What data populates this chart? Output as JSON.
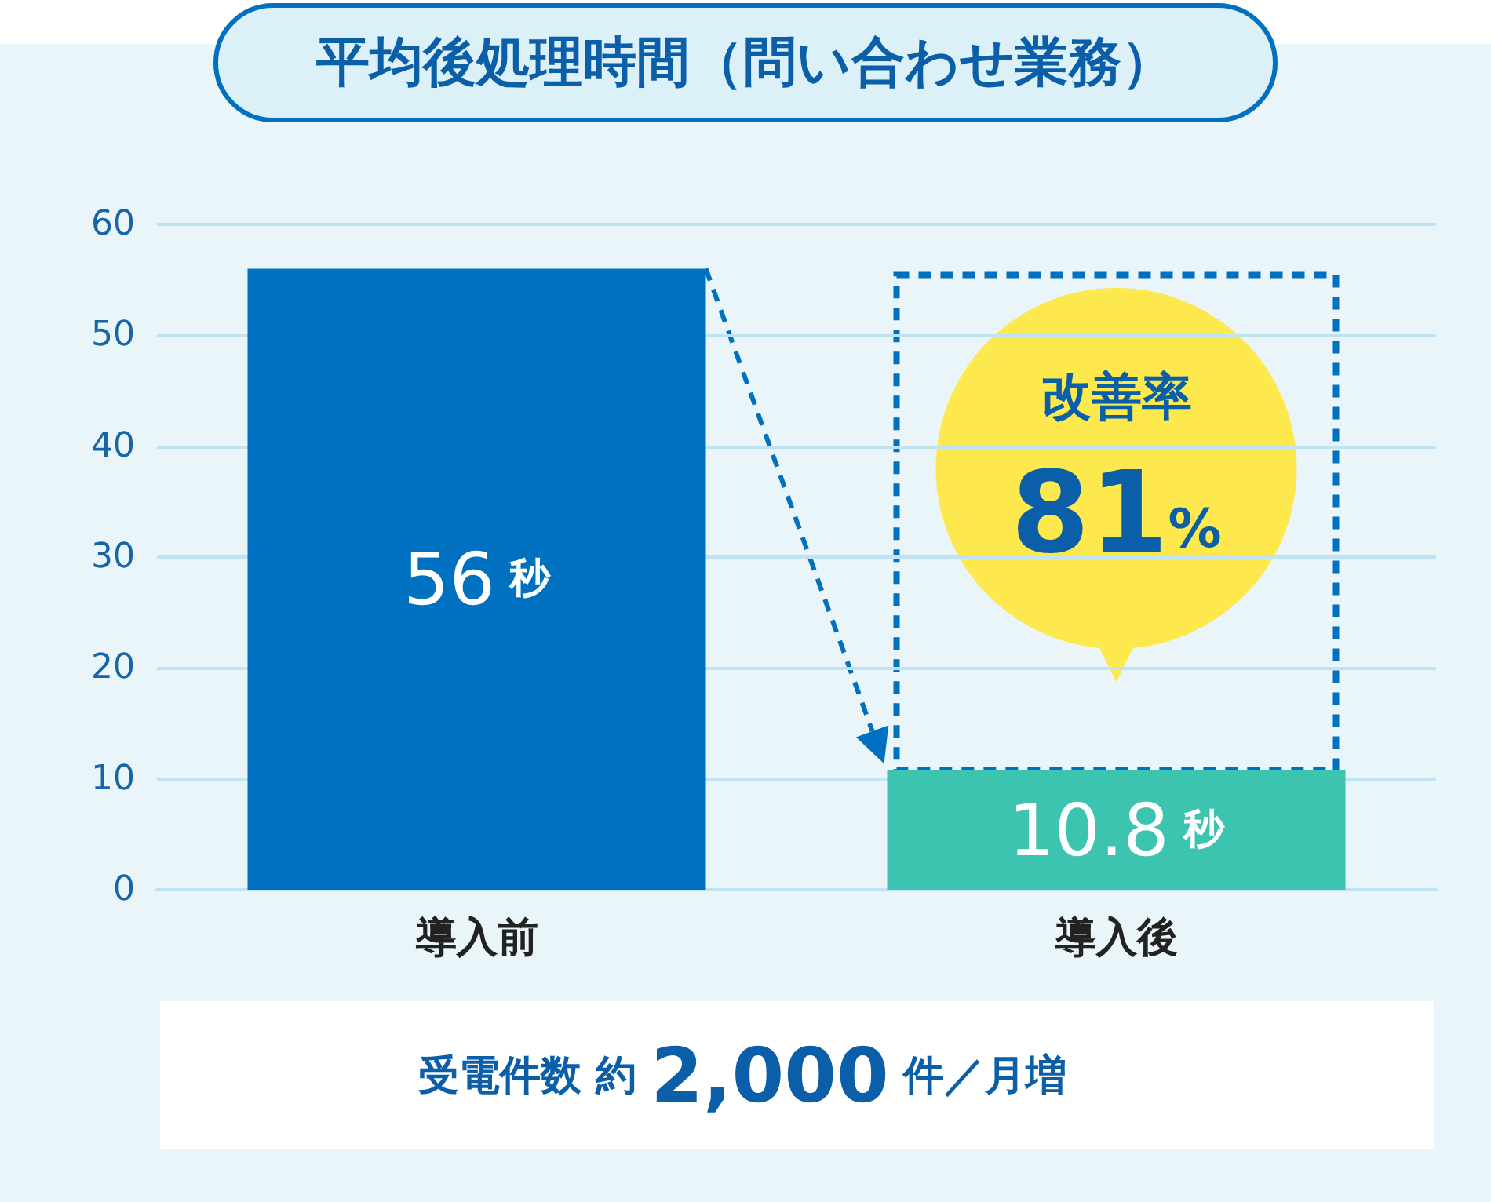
{
  "chart_data": {
    "type": "bar",
    "title": "平均後処理時間（問い合わせ業務）",
    "categories": [
      "導入前",
      "導入後"
    ],
    "values": [
      56,
      10.8
    ],
    "colors": [
      "#0070c0",
      "#3cc4b0"
    ],
    "value_labels": [
      "56 秒",
      "10.8 秒"
    ],
    "ylim": [
      0,
      60
    ],
    "yticks": [
      0,
      10,
      20,
      30,
      40,
      50,
      60
    ],
    "grid": "y",
    "annotations": [
      "改善率",
      "81%",
      "受電件数 約 2,000 件／月増"
    ]
  }
}
